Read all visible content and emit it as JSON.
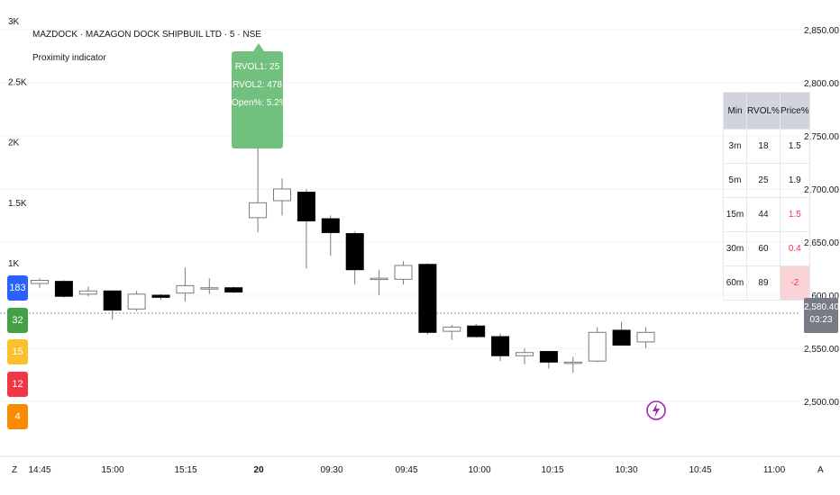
{
  "header": {
    "symbol_line": "MAZDOCK · MAZAGON DOCK SHIPBUIL LTD · 5 · NSE",
    "indicator_name": "Proximity indicator"
  },
  "left_axis": {
    "labels": [
      "3K",
      "2.5K",
      "2K",
      "1.5K",
      "1K"
    ],
    "values": [
      3000,
      2500,
      2000,
      1500,
      1000
    ]
  },
  "badges": [
    {
      "value": "183",
      "color": "#2962ff"
    },
    {
      "value": "32",
      "color": "#43a047"
    },
    {
      "value": "15",
      "color": "#fbc02d"
    },
    {
      "value": "12",
      "color": "#f23645"
    },
    {
      "value": "4",
      "color": "#fb8c00"
    }
  ],
  "tooltip": {
    "lines": [
      "RVOL1: 25",
      "RVOL2: 478",
      "Open%: 5.2%"
    ],
    "color": "#72c07d"
  },
  "table": {
    "headers": [
      "Min",
      "RVOL%",
      "Price%"
    ],
    "rows": [
      {
        "min": "3m",
        "rvol": "18",
        "price": "1.5",
        "price_state": "normal"
      },
      {
        "min": "5m",
        "rvol": "25",
        "price": "1.9",
        "price_state": "normal"
      },
      {
        "min": "15m",
        "rvol": "44",
        "price": "1.5",
        "price_state": "red"
      },
      {
        "min": "30m",
        "rvol": "60",
        "price": "0.4",
        "price_state": "red"
      },
      {
        "min": "60m",
        "rvol": "89",
        "price": "-2",
        "price_state": "red-pill"
      }
    ]
  },
  "right_axis": {
    "labels": [
      "2,850.00",
      "2,800.00",
      "2,750.00",
      "2,700.00",
      "2,650.00",
      "2,600.00",
      "2,550.00",
      "2,500.00"
    ],
    "values": [
      2850,
      2800,
      2750,
      2700,
      2650,
      2600,
      2550,
      2500
    ]
  },
  "current_price": {
    "price": "2,580.40",
    "countdown": "03:23"
  },
  "time_axis": {
    "labels": [
      "14:45",
      "15:00",
      "15:15",
      "20",
      "09:30",
      "09:45",
      "10:00",
      "10:15",
      "10:30",
      "10:45",
      "11:00"
    ],
    "corner_left": "Z",
    "corner_right": "A"
  },
  "colors": {
    "bull": "#ffffff",
    "bear": "#000000",
    "wick": "#787b86",
    "grid": "#f0f3fa"
  },
  "chart_data": {
    "type": "candlestick",
    "price_range": [
      2480,
      2865
    ],
    "candles": [
      {
        "t": "14:40",
        "o": 2611,
        "h": 2616,
        "l": 2607,
        "c": 2614
      },
      {
        "t": "14:45",
        "o": 2613,
        "h": 2614,
        "l": 2598,
        "c": 2599
      },
      {
        "t": "14:50",
        "o": 2601,
        "h": 2608,
        "l": 2599,
        "c": 2604
      },
      {
        "t": "14:55",
        "o": 2604,
        "h": 2604,
        "l": 2577,
        "c": 2586
      },
      {
        "t": "15:00",
        "o": 2587,
        "h": 2604,
        "l": 2585,
        "c": 2601
      },
      {
        "t": "15:05",
        "o": 2600,
        "h": 2601,
        "l": 2596,
        "c": 2598
      },
      {
        "t": "15:10",
        "o": 2602,
        "h": 2626,
        "l": 2594,
        "c": 2609
      },
      {
        "t": "15:15",
        "o": 2607,
        "h": 2616,
        "l": 2601,
        "c": 2607
      },
      {
        "t": "15:20",
        "o": 2607,
        "h": 2608,
        "l": 2602,
        "c": 2603
      },
      {
        "t": "09:15",
        "o": 2673,
        "h": 2760,
        "l": 2659,
        "c": 2687
      },
      {
        "t": "09:20",
        "o": 2689,
        "h": 2710,
        "l": 2675,
        "c": 2700
      },
      {
        "t": "09:25",
        "o": 2697,
        "h": 2700,
        "l": 2625,
        "c": 2670
      },
      {
        "t": "09:30",
        "o": 2672,
        "h": 2675,
        "l": 2637,
        "c": 2659
      },
      {
        "t": "09:35",
        "o": 2658,
        "h": 2660,
        "l": 2610,
        "c": 2624
      },
      {
        "t": "09:40",
        "o": 2616,
        "h": 2624,
        "l": 2600,
        "c": 2616
      },
      {
        "t": "09:45",
        "o": 2615,
        "h": 2632,
        "l": 2610,
        "c": 2628
      },
      {
        "t": "09:50",
        "o": 2629,
        "h": 2630,
        "l": 2563,
        "c": 2565
      },
      {
        "t": "09:55",
        "o": 2566,
        "h": 2572,
        "l": 2558,
        "c": 2570
      },
      {
        "t": "10:00",
        "o": 2571,
        "h": 2573,
        "l": 2560,
        "c": 2561
      },
      {
        "t": "10:05",
        "o": 2561,
        "h": 2564,
        "l": 2538,
        "c": 2543
      },
      {
        "t": "10:10",
        "o": 2543,
        "h": 2550,
        "l": 2535,
        "c": 2546
      },
      {
        "t": "10:15",
        "o": 2547,
        "h": 2547,
        "l": 2531,
        "c": 2537
      },
      {
        "t": "10:20",
        "o": 2537,
        "h": 2542,
        "l": 2527,
        "c": 2537
      },
      {
        "t": "10:25",
        "o": 2538,
        "h": 2570,
        "l": 2537,
        "c": 2565
      },
      {
        "t": "10:30",
        "o": 2567,
        "h": 2575,
        "l": 2553,
        "c": 2553
      },
      {
        "t": "10:35",
        "o": 2556,
        "h": 2570,
        "l": 2550,
        "c": 2565
      }
    ]
  }
}
